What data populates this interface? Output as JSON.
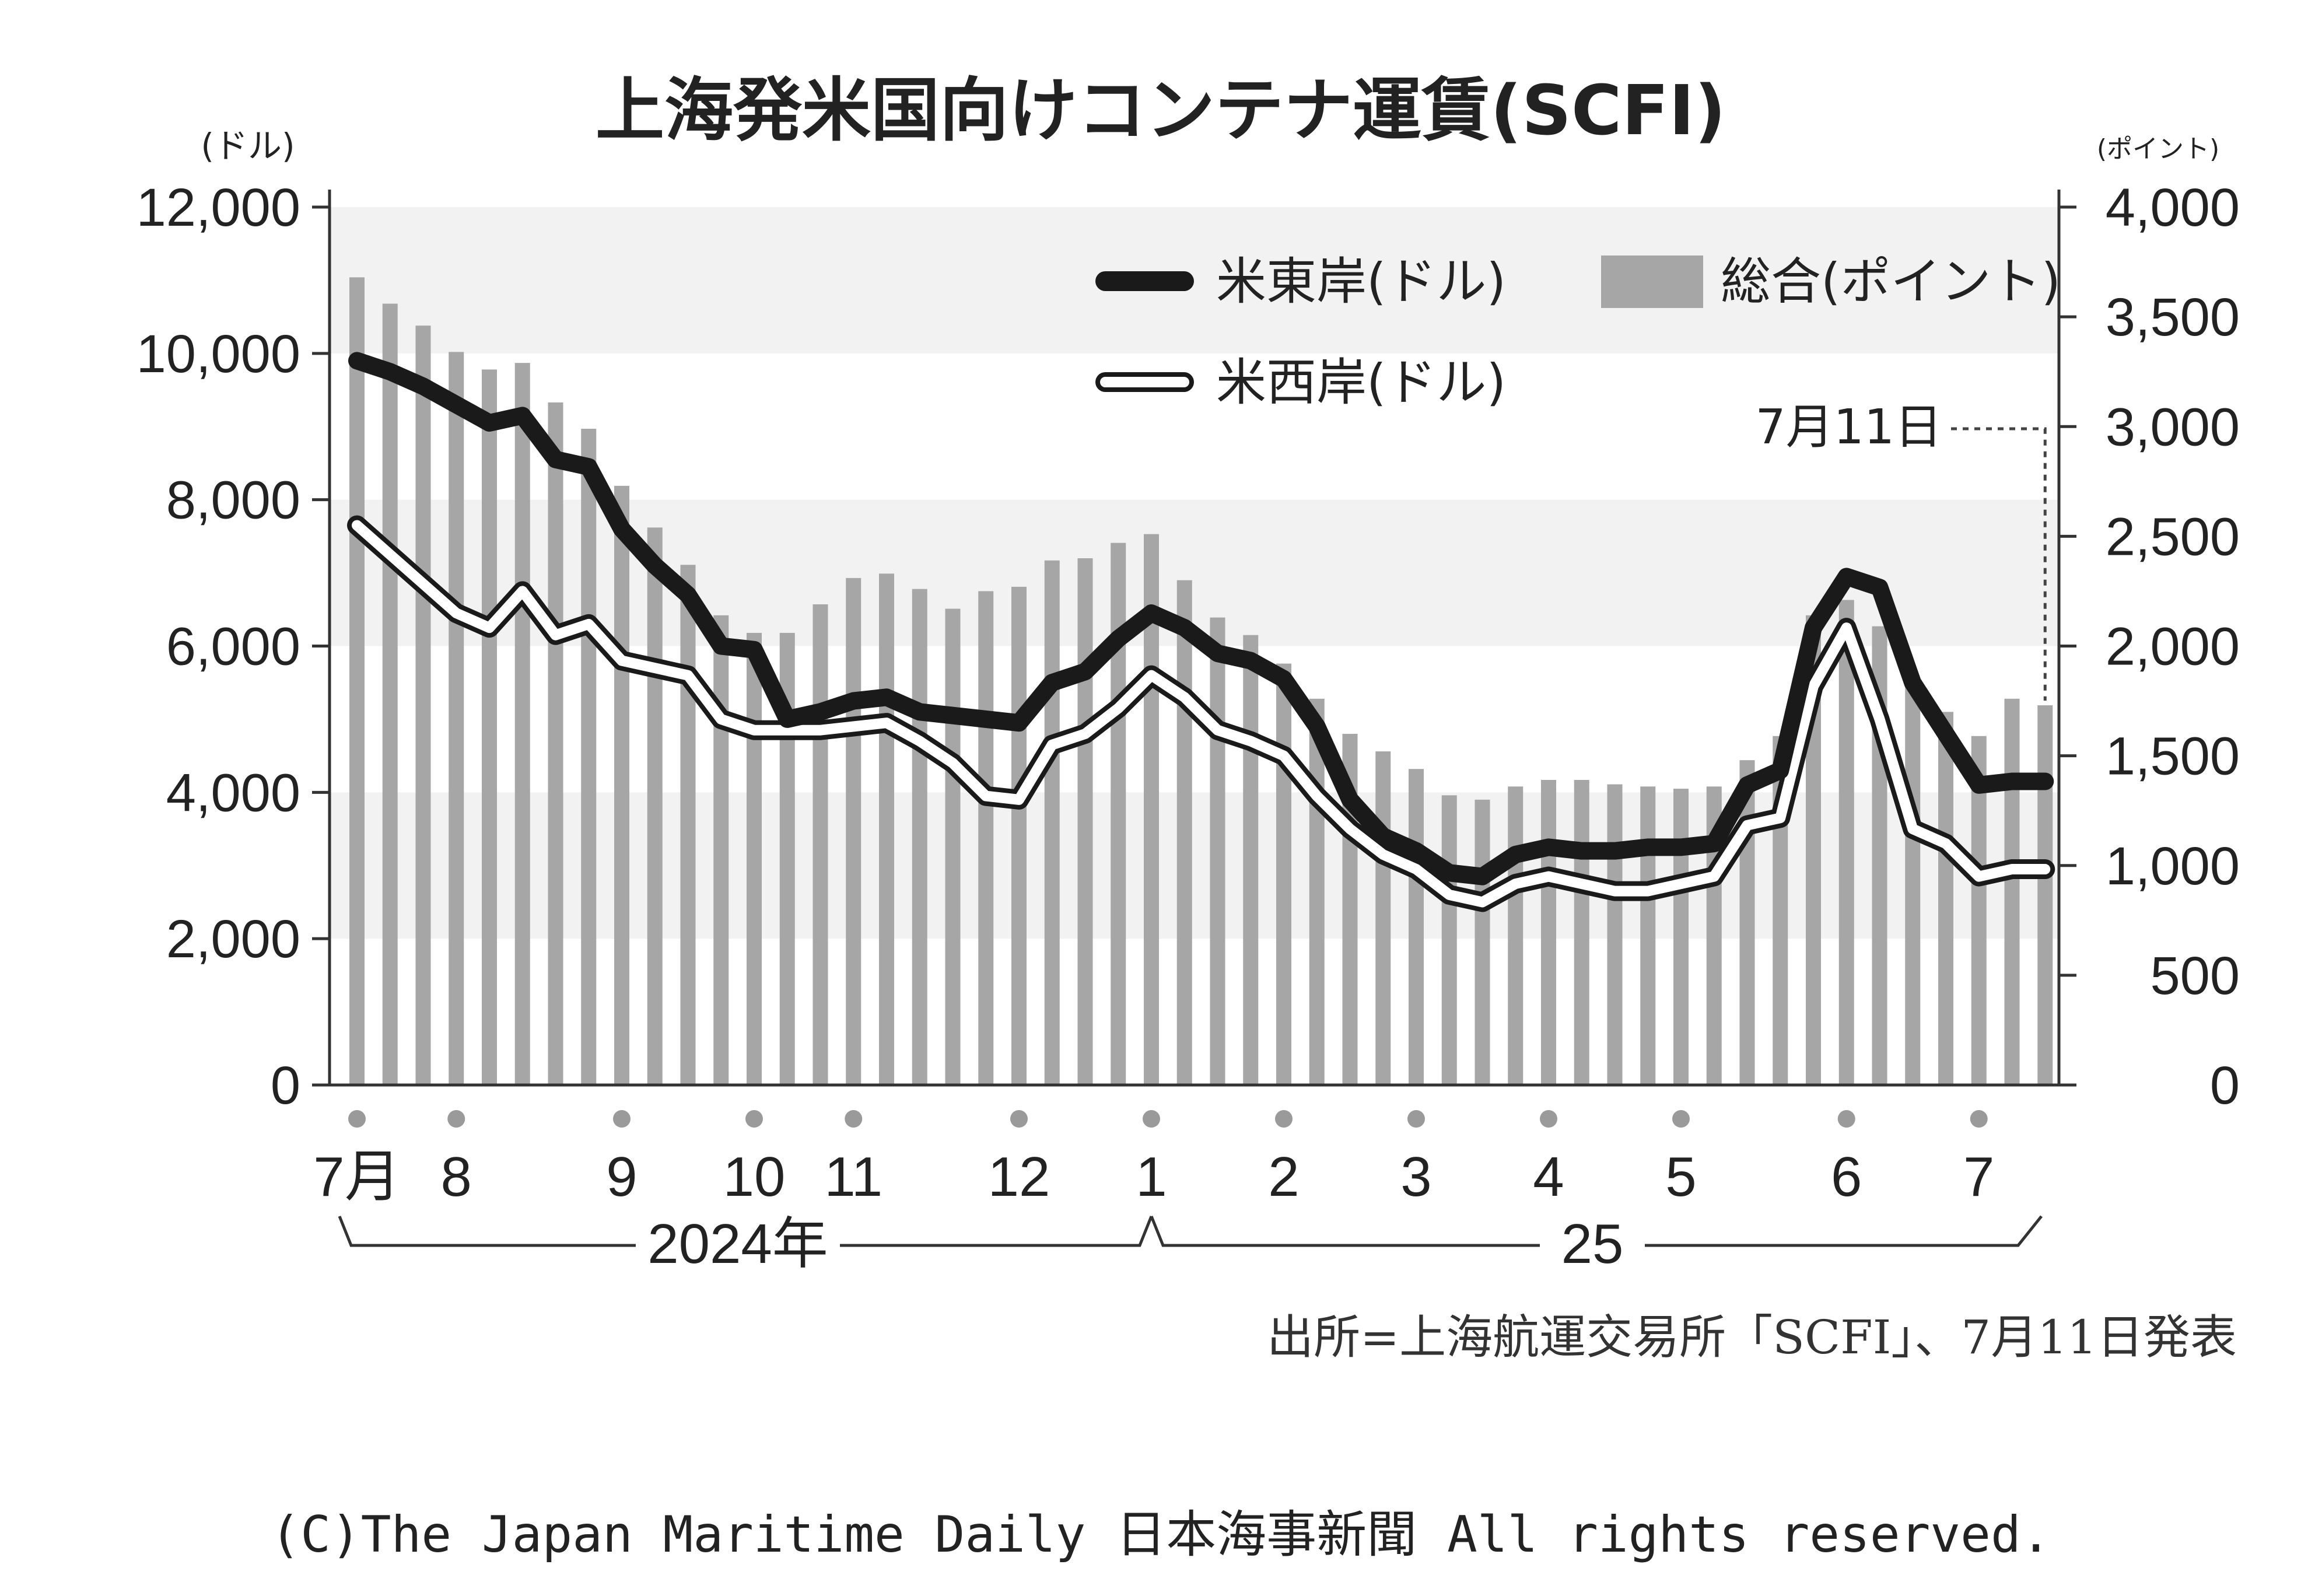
{
  "chart_data": {
    "type": "bar+line",
    "title": "上海発米国向けコンテナ運賃(SCFI)",
    "left_axis": {
      "unit": "(ドル)",
      "ylim": [
        0,
        12000
      ],
      "ticks": [
        "0",
        "2,000",
        "4,000",
        "6,000",
        "8,000",
        "10,000",
        "12,000"
      ]
    },
    "right_axis": {
      "unit": "(ポイント)",
      "ylim": [
        0,
        4000
      ],
      "ticks": [
        "0",
        "500",
        "1,000",
        "1,500",
        "2,000",
        "2,500",
        "3,000",
        "3,500",
        "4,000"
      ]
    },
    "legend": {
      "position": "top-right",
      "east": "米東岸(ドル)",
      "west": "米西岸(ドル)",
      "composite": "総合(ポイント)"
    },
    "month_labels": [
      "7月",
      "8",
      "9",
      "10",
      "11",
      "12",
      "1",
      "2",
      "3",
      "4",
      "5",
      "6",
      "7"
    ],
    "month_positions": [
      0,
      3,
      8,
      12,
      15,
      20,
      24,
      28,
      32,
      36,
      40,
      45,
      49
    ],
    "year_labels": {
      "y2024": "2024年",
      "y2025": "25"
    },
    "annotation": "7月11日",
    "grid": "alternating horizontal bands",
    "series": [
      {
        "name": "総合(ポイント)",
        "axis": "right",
        "color": "#a6a6a6",
        "values": [
          3680,
          3560,
          3460,
          3340,
          3260,
          3290,
          3110,
          2990,
          2730,
          2540,
          2370,
          2140,
          2060,
          2060,
          2190,
          2310,
          2330,
          2260,
          2170,
          2250,
          2270,
          2390,
          2400,
          2470,
          2510,
          2300,
          2130,
          2050,
          1920,
          1760,
          1600,
          1520,
          1440,
          1320,
          1300,
          1360,
          1390,
          1390,
          1370,
          1360,
          1350,
          1360,
          1480,
          1590,
          2140,
          2210,
          2090,
          1840,
          1700,
          1590,
          1760,
          1730
        ]
      },
      {
        "name": "米東岸(ドル)",
        "axis": "left",
        "color": "#1a1a1a",
        "values": [
          9900,
          9750,
          9550,
          9300,
          9050,
          9150,
          8550,
          8450,
          7600,
          7100,
          6700,
          6000,
          5950,
          5000,
          5100,
          5250,
          5300,
          5100,
          5050,
          5000,
          4950,
          5500,
          5650,
          6100,
          6450,
          6250,
          5900,
          5800,
          5550,
          4900,
          3900,
          3400,
          3200,
          2900,
          2850,
          3150,
          3250,
          3200,
          3200,
          3250,
          3250,
          3300,
          4100,
          4300,
          6250,
          6950,
          6800,
          5500,
          4800,
          4100,
          4150,
          4150
        ]
      },
      {
        "name": "米西岸(ドル)",
        "axis": "left",
        "color": "#1a1a1a",
        "values": [
          7650,
          7250,
          6850,
          6450,
          6250,
          6750,
          6150,
          6300,
          5800,
          5700,
          5600,
          5000,
          4850,
          4850,
          4850,
          4900,
          4950,
          4700,
          4400,
          3950,
          3900,
          4650,
          4800,
          5150,
          5600,
          5300,
          4850,
          4700,
          4500,
          3950,
          3500,
          3150,
          2950,
          2600,
          2500,
          2750,
          2850,
          2750,
          2650,
          2650,
          2750,
          2850,
          3550,
          3650,
          5450,
          6250,
          5000,
          3500,
          3300,
          2850,
          2950,
          2950
        ]
      }
    ],
    "source": "出所=上海航運交易所「SCFI」、7月11日発表"
  },
  "copyright": "(C)The Japan Maritime Daily 日本海事新聞 All rights reserved."
}
